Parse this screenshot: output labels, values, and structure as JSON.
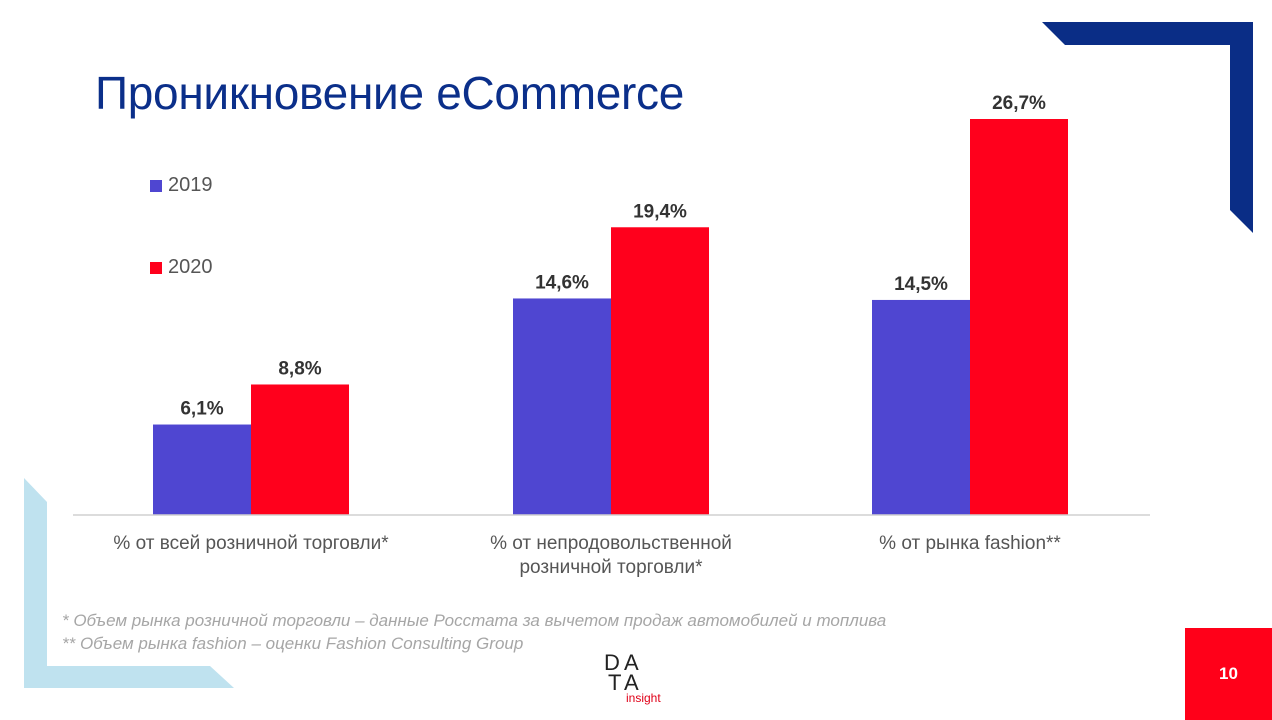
{
  "slide": {
    "title": "Проникновение eCommerce",
    "page_number": "10",
    "footnotes": [
      "* Объем рынка розничной торговли – данные Росстата за вычетом продаж автомобилей и топлива",
      "** Объем рынка fashion – оценки Fashion Consulting Group"
    ],
    "logo": {
      "letters": [
        "D",
        "A",
        "T",
        "A"
      ],
      "tagline": "insight"
    }
  },
  "colors": {
    "title": "#0b2f8a",
    "series_2019": "#4f46d1",
    "series_2020": "#ff001c",
    "accent_navy": "#0a2d86",
    "accent_light": "#bfe2ef",
    "page_badge": "#ff0019"
  },
  "chart_data": {
    "type": "bar",
    "categories": [
      [
        "% от всей розничной торговли*"
      ],
      [
        "% от непродовольственной",
        "розничной торговли*"
      ],
      [
        "% от рынка fashion**"
      ]
    ],
    "series": [
      {
        "name": "2019",
        "values": [
          6.1,
          14.6,
          14.5
        ],
        "labels": [
          "6,1%",
          "14,6%",
          "14,5%"
        ],
        "color": "#4f46d1"
      },
      {
        "name": "2020",
        "values": [
          8.8,
          19.4,
          26.7
        ],
        "labels": [
          "8,8%",
          "19,4%",
          "26,7%"
        ],
        "color": "#ff001c"
      }
    ],
    "ylim": [
      0,
      27.5
    ],
    "legend": "top-left",
    "grid": false
  }
}
